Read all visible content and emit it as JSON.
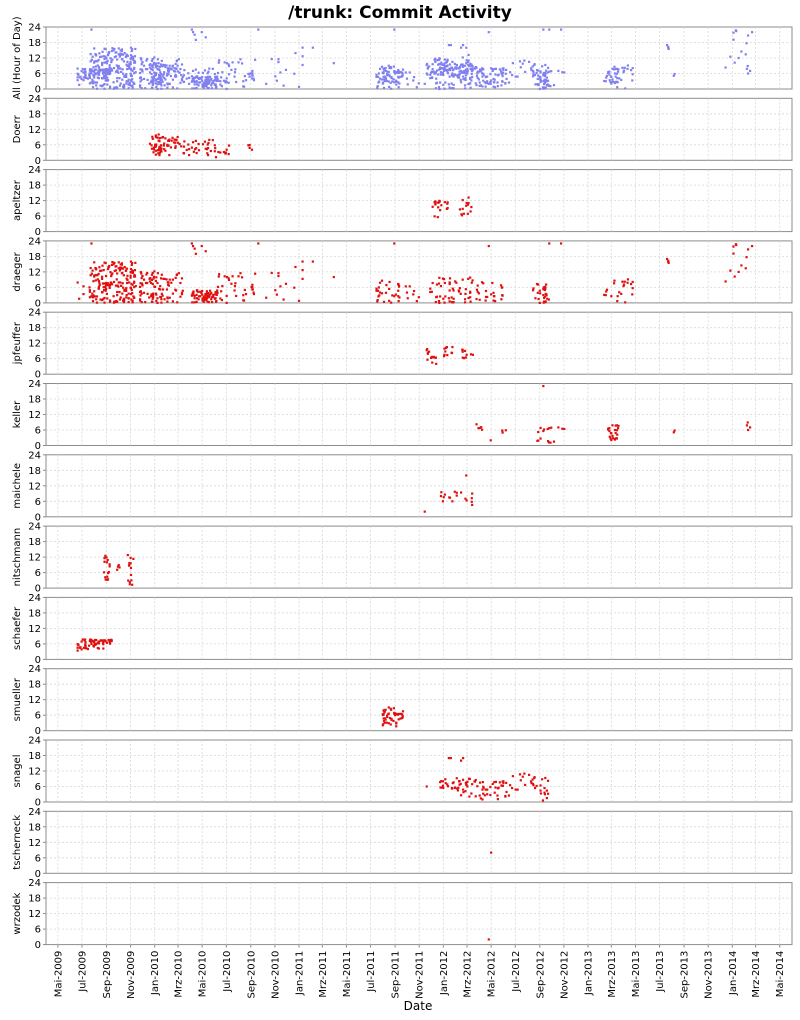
{
  "chart_data": {
    "type": "scatter",
    "title": "/trunk: Commit Activity",
    "xlabel": "Date",
    "x_ticks": [
      "Mai-2009",
      "Jul-2009",
      "Sep-2009",
      "Nov-2009",
      "Jan-2010",
      "Mrz-2010",
      "Mai-2010",
      "Jul-2010",
      "Sep-2010",
      "Nov-2010",
      "Jan-2011",
      "Mrz-2011",
      "Mai-2011",
      "Jul-2011",
      "Sep-2011",
      "Nov-2011",
      "Jan-2012",
      "Mrz-2012",
      "Mai-2012",
      "Jul-2012",
      "Sep-2012",
      "Nov-2012",
      "Jan-2013",
      "Mrz-2013",
      "Mai-2013",
      "Jul-2013",
      "Sep-2013",
      "Nov-2013",
      "Jan-2014",
      "Mrz-2014",
      "Mai-2014"
    ],
    "xlim": [
      "2009-04-01",
      "2014-06-01"
    ],
    "y_ticks": [
      0,
      6,
      12,
      18,
      24
    ],
    "ylim": [
      0,
      24
    ],
    "grid": true,
    "all_color": "#8080f0",
    "author_color": "#e01010",
    "panels": [
      {
        "name": "All (Hour of Day)",
        "color": "#8080f0",
        "points": []
      },
      {
        "name": "Doerr",
        "color": "#e01010",
        "clusters": [
          [
            "2009-12-20",
            "2010-01-25",
            2,
            10,
            40
          ],
          [
            "2010-01-25",
            "2010-03-10",
            2,
            9,
            25
          ],
          [
            "2010-03-10",
            "2010-05-05",
            2,
            8,
            18
          ],
          [
            "2010-05-05",
            "2010-06-15",
            1,
            8,
            16
          ],
          [
            "2010-06-15",
            "2010-07-10",
            1,
            6,
            8
          ],
          [
            "2010-08-25",
            "2010-09-05",
            4,
            6,
            4
          ]
        ]
      },
      {
        "name": "apeltzer",
        "color": "#e01010",
        "clusters": [
          [
            "2011-12-05",
            "2011-12-30",
            5,
            12,
            14
          ],
          [
            "2012-01-01",
            "2012-01-15",
            8,
            12,
            5
          ],
          [
            "2012-02-10",
            "2012-03-20",
            6,
            14,
            14
          ]
        ]
      },
      {
        "name": "draeger",
        "color": "#e01010",
        "clusters": [
          [
            "2009-06-20",
            "2009-07-10",
            0,
            8,
            4
          ],
          [
            "2009-07-20",
            "2009-11-15",
            0,
            16,
            190
          ],
          [
            "2009-11-25",
            "2010-01-25",
            0,
            13,
            70
          ],
          [
            "2010-01-25",
            "2010-03-15",
            0,
            12,
            30
          ],
          [
            "2010-04-05",
            "2010-06-10",
            0,
            5,
            70
          ],
          [
            "2010-06-10",
            "2010-09-15",
            0,
            12,
            35
          ],
          [
            "2010-09-20",
            "2011-01-15",
            0,
            16,
            14
          ],
          [
            "2011-07-15",
            "2011-09-15",
            0,
            9,
            30
          ],
          [
            "2011-09-25",
            "2011-11-10",
            0,
            7,
            8
          ],
          [
            "2011-11-20",
            "2012-01-10",
            0,
            10,
            20
          ],
          [
            "2012-01-15",
            "2012-03-20",
            0,
            10,
            35
          ],
          [
            "2012-03-20",
            "2012-05-31",
            0,
            8,
            25
          ],
          [
            "2012-08-10",
            "2012-09-25",
            0,
            8,
            30
          ],
          [
            "2013-02-10",
            "2013-04-25",
            0,
            10,
            22
          ],
          [
            "2013-07-15",
            "2013-07-30",
            15,
            17,
            3
          ],
          [
            "2013-12-15",
            "2014-02-25",
            8,
            24,
            12
          ]
        ],
        "points": [
          [
            "2009-07-25",
            23
          ],
          [
            "2010-04-05",
            23
          ],
          [
            "2010-04-08",
            22
          ],
          [
            "2010-04-12",
            21
          ],
          [
            "2010-04-15",
            19
          ],
          [
            "2010-04-30",
            22
          ],
          [
            "2010-05-10",
            20
          ],
          [
            "2010-09-20",
            23
          ],
          [
            "2011-08-30",
            23
          ],
          [
            "2012-04-25",
            22
          ],
          [
            "2012-09-25",
            23
          ],
          [
            "2012-10-25",
            23
          ],
          [
            "2011-01-10",
            16
          ],
          [
            "2011-02-05",
            16
          ],
          [
            "2011-03-30",
            10
          ],
          [
            "2013-07-20",
            17
          ],
          [
            "2014-02-20",
            22
          ]
        ]
      },
      {
        "name": "jpfeuffer",
        "color": "#e01010",
        "clusters": [
          [
            "2011-11-15",
            "2011-12-15",
            4,
            11,
            14
          ],
          [
            "2012-01-01",
            "2012-01-25",
            7,
            11,
            10
          ],
          [
            "2012-02-15",
            "2012-03-20",
            6,
            10,
            10
          ]
        ]
      },
      {
        "name": "keller",
        "color": "#e01010",
        "clusters": [
          [
            "2012-03-25",
            "2012-04-10",
            6,
            9,
            5
          ],
          [
            "2012-05-15",
            "2012-06-10",
            5,
            7,
            3
          ],
          [
            "2012-08-20",
            "2012-10-10",
            1,
            7,
            14
          ],
          [
            "2012-10-15",
            "2012-11-05",
            6,
            7,
            3
          ],
          [
            "2013-02-20",
            "2013-03-20",
            2,
            8,
            24
          ],
          [
            "2013-08-05",
            "2013-08-12",
            5,
            6,
            2
          ],
          [
            "2014-02-05",
            "2014-02-20",
            6,
            9,
            4
          ]
        ],
        "points": [
          [
            "2012-09-10",
            23
          ],
          [
            "2012-04-30",
            2
          ]
        ]
      },
      {
        "name": "maichele",
        "color": "#e01010",
        "clusters": [
          [
            "2011-12-25",
            "2012-02-20",
            6,
            10,
            12
          ],
          [
            "2012-02-20",
            "2012-03-15",
            4,
            10,
            6
          ]
        ],
        "points": [
          [
            "2011-11-15",
            2
          ],
          [
            "2012-02-28",
            16
          ]
        ]
      },
      {
        "name": "nitschmann",
        "color": "#e01010",
        "clusters": [
          [
            "2009-08-25",
            "2009-09-10",
            3,
            13,
            16
          ],
          [
            "2009-09-25",
            "2009-10-05",
            7,
            9,
            4
          ],
          [
            "2009-10-25",
            "2009-11-10",
            1,
            13,
            14
          ]
        ]
      },
      {
        "name": "schaefer",
        "color": "#e01010",
        "clusters": [
          [
            "2009-06-20",
            "2009-07-25",
            3,
            8,
            25
          ],
          [
            "2009-07-25",
            "2009-08-31",
            4,
            8,
            30
          ],
          [
            "2009-08-31",
            "2009-09-20",
            6,
            9,
            10
          ]
        ]
      },
      {
        "name": "smueller",
        "color": "#e01010",
        "clusters": [
          [
            "2011-08-01",
            "2011-09-05",
            1,
            9,
            40
          ],
          [
            "2011-09-05",
            "2011-09-25",
            4,
            8,
            12
          ]
        ]
      },
      {
        "name": "snagel",
        "color": "#e01010",
        "clusters": [
          [
            "2011-12-20",
            "2012-02-05",
            5,
            10,
            18
          ],
          [
            "2012-02-05",
            "2012-04-05",
            2,
            9,
            30
          ],
          [
            "2012-04-05",
            "2012-06-20",
            1,
            8,
            35
          ],
          [
            "2012-06-20",
            "2012-08-10",
            4,
            11,
            10
          ],
          [
            "2012-08-10",
            "2012-09-25",
            0,
            10,
            22
          ]
        ],
        "points": [
          [
            "2012-01-15",
            17
          ],
          [
            "2012-01-20",
            17
          ],
          [
            "2012-02-15",
            16
          ],
          [
            "2012-02-20",
            17
          ],
          [
            "2011-11-20",
            6
          ]
        ]
      },
      {
        "name": "tscherneck",
        "color": "#e01010",
        "points": [
          [
            "2012-05-01",
            8
          ]
        ]
      },
      {
        "name": "wrzodek",
        "color": "#e01010",
        "points": [
          [
            "2012-04-25",
            2
          ]
        ]
      }
    ]
  }
}
